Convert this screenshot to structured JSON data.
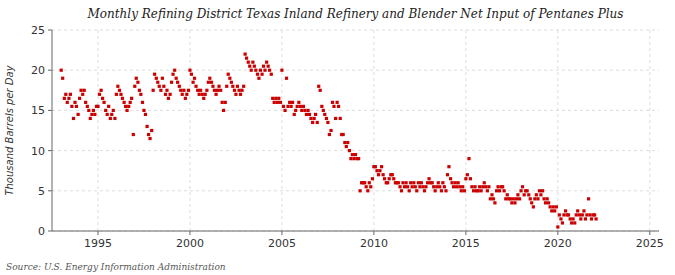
{
  "chart_data": {
    "type": "scatter",
    "title": "Monthly Refining District Texas Inland Refinery and Blender Net Input of Pentanes Plus",
    "y_label": "Thousand Barrels per Day",
    "annotations": [
      "Source: U.S. Energy Information Administration"
    ],
    "color": "#cc0000",
    "marker": "square",
    "grid": true,
    "xlim": [
      1992.5,
      2025.5
    ],
    "ylim": [
      0,
      25
    ],
    "xticks": [
      1995,
      2000,
      2005,
      2010,
      2015,
      2020,
      2025
    ],
    "yticks": [
      0,
      5,
      10,
      15,
      20,
      25
    ],
    "x": [
      1993.0,
      1993.08,
      1993.17,
      1993.25,
      1993.33,
      1993.42,
      1993.5,
      1993.58,
      1993.67,
      1993.75,
      1993.83,
      1993.92,
      1994.0,
      1994.08,
      1994.17,
      1994.25,
      1994.33,
      1994.42,
      1994.5,
      1994.58,
      1994.67,
      1994.75,
      1994.83,
      1994.92,
      1995.0,
      1995.08,
      1995.17,
      1995.25,
      1995.33,
      1995.42,
      1995.5,
      1995.58,
      1995.67,
      1995.75,
      1995.83,
      1995.92,
      1996.0,
      1996.08,
      1996.17,
      1996.25,
      1996.33,
      1996.42,
      1996.5,
      1996.58,
      1996.67,
      1996.75,
      1996.83,
      1996.92,
      1997.0,
      1997.08,
      1997.17,
      1997.25,
      1997.33,
      1997.42,
      1997.5,
      1997.58,
      1997.67,
      1997.75,
      1997.83,
      1997.92,
      1998.0,
      1998.08,
      1998.17,
      1998.25,
      1998.33,
      1998.42,
      1998.5,
      1998.58,
      1998.67,
      1998.75,
      1998.83,
      1998.92,
      1999.0,
      1999.08,
      1999.17,
      1999.25,
      1999.33,
      1999.42,
      1999.5,
      1999.58,
      1999.67,
      1999.75,
      1999.83,
      1999.92,
      2000.0,
      2000.08,
      2000.17,
      2000.25,
      2000.33,
      2000.42,
      2000.5,
      2000.58,
      2000.67,
      2000.75,
      2000.83,
      2000.92,
      2001.0,
      2001.08,
      2001.17,
      2001.25,
      2001.33,
      2001.42,
      2001.5,
      2001.58,
      2001.67,
      2001.75,
      2001.83,
      2001.92,
      2002.0,
      2002.08,
      2002.17,
      2002.25,
      2002.33,
      2002.42,
      2002.5,
      2002.58,
      2002.67,
      2002.75,
      2002.83,
      2002.92,
      2003.0,
      2003.08,
      2003.17,
      2003.25,
      2003.33,
      2003.42,
      2003.5,
      2003.58,
      2003.67,
      2003.75,
      2003.83,
      2003.92,
      2004.0,
      2004.08,
      2004.17,
      2004.25,
      2004.33,
      2004.42,
      2004.5,
      2004.58,
      2004.67,
      2004.75,
      2004.83,
      2004.92,
      2005.0,
      2005.08,
      2005.17,
      2005.25,
      2005.33,
      2005.42,
      2005.5,
      2005.58,
      2005.67,
      2005.75,
      2005.83,
      2005.92,
      2006.0,
      2006.08,
      2006.17,
      2006.25,
      2006.33,
      2006.42,
      2006.5,
      2006.58,
      2006.67,
      2006.75,
      2006.83,
      2006.92,
      2007.0,
      2007.08,
      2007.17,
      2007.25,
      2007.33,
      2007.42,
      2007.5,
      2007.58,
      2007.67,
      2007.75,
      2007.83,
      2007.92,
      2008.0,
      2008.08,
      2008.17,
      2008.25,
      2008.33,
      2008.42,
      2008.5,
      2008.58,
      2008.67,
      2008.75,
      2008.83,
      2008.92,
      2009.0,
      2009.08,
      2009.17,
      2009.25,
      2009.33,
      2009.42,
      2009.5,
      2009.58,
      2009.67,
      2009.75,
      2009.83,
      2009.92,
      2010.0,
      2010.08,
      2010.17,
      2010.25,
      2010.33,
      2010.42,
      2010.5,
      2010.58,
      2010.67,
      2010.75,
      2010.83,
      2010.92,
      2011.0,
      2011.08,
      2011.17,
      2011.25,
      2011.33,
      2011.42,
      2011.5,
      2011.58,
      2011.67,
      2011.75,
      2011.83,
      2011.92,
      2012.0,
      2012.08,
      2012.17,
      2012.25,
      2012.33,
      2012.42,
      2012.5,
      2012.58,
      2012.67,
      2012.75,
      2012.83,
      2012.92,
      2013.0,
      2013.08,
      2013.17,
      2013.25,
      2013.33,
      2013.42,
      2013.5,
      2013.58,
      2013.67,
      2013.75,
      2013.83,
      2013.92,
      2014.0,
      2014.08,
      2014.17,
      2014.25,
      2014.33,
      2014.42,
      2014.5,
      2014.58,
      2014.67,
      2014.75,
      2014.83,
      2014.92,
      2015.0,
      2015.08,
      2015.17,
      2015.25,
      2015.33,
      2015.42,
      2015.5,
      2015.58,
      2015.67,
      2015.75,
      2015.83,
      2015.92,
      2016.0,
      2016.08,
      2016.17,
      2016.25,
      2016.33,
      2016.42,
      2016.5,
      2016.58,
      2016.67,
      2016.75,
      2016.83,
      2016.92,
      2017.0,
      2017.08,
      2017.17,
      2017.25,
      2017.33,
      2017.42,
      2017.5,
      2017.58,
      2017.67,
      2017.75,
      2017.83,
      2017.92,
      2018.0,
      2018.08,
      2018.17,
      2018.25,
      2018.33,
      2018.42,
      2018.5,
      2018.58,
      2018.67,
      2018.75,
      2018.83,
      2018.92,
      2019.0,
      2019.08,
      2019.17,
      2019.25,
      2019.33,
      2019.42,
      2019.5,
      2019.58,
      2019.67,
      2019.75,
      2019.83,
      2019.92,
      2020.0,
      2020.08,
      2020.17,
      2020.25,
      2020.33,
      2020.42,
      2020.5,
      2020.58,
      2020.67,
      2020.75,
      2020.83,
      2020.92,
      2021.0,
      2021.08,
      2021.17,
      2021.25,
      2021.33,
      2021.42,
      2021.5,
      2021.58,
      2021.67,
      2021.75,
      2021.83,
      2021.92,
      2022.0,
      2022.08
    ],
    "values": [
      20.0,
      19.0,
      16.5,
      17.0,
      16.0,
      16.5,
      17.0,
      15.5,
      14.0,
      16.0,
      15.5,
      14.5,
      16.5,
      17.5,
      17.0,
      17.5,
      16.0,
      15.5,
      15.0,
      14.0,
      14.5,
      15.0,
      14.5,
      15.5,
      15.5,
      17.0,
      17.5,
      16.5,
      16.0,
      15.0,
      14.5,
      15.5,
      14.0,
      14.5,
      15.0,
      14.0,
      17.0,
      18.0,
      17.5,
      17.0,
      16.5,
      16.0,
      15.5,
      15.0,
      15.5,
      16.0,
      16.5,
      12.0,
      18.0,
      19.0,
      18.5,
      17.5,
      17.0,
      16.0,
      15.0,
      14.5,
      13.0,
      12.0,
      11.5,
      12.5,
      17.5,
      19.5,
      19.0,
      18.5,
      18.0,
      17.5,
      19.0,
      18.0,
      17.0,
      17.5,
      16.5,
      17.0,
      18.5,
      19.5,
      20.0,
      19.0,
      18.5,
      18.0,
      17.5,
      17.0,
      17.5,
      16.5,
      17.0,
      17.5,
      20.0,
      19.5,
      18.5,
      19.0,
      18.0,
      17.5,
      17.0,
      17.5,
      17.0,
      16.5,
      17.0,
      17.5,
      18.5,
      19.0,
      18.5,
      18.0,
      17.5,
      17.0,
      17.5,
      18.0,
      17.5,
      16.0,
      15.0,
      16.0,
      18.0,
      19.5,
      19.0,
      18.5,
      18.0,
      17.5,
      17.0,
      18.0,
      17.5,
      17.0,
      17.5,
      18.0,
      22.0,
      21.5,
      21.0,
      20.5,
      20.0,
      21.0,
      20.5,
      20.0,
      19.5,
      19.0,
      20.0,
      19.5,
      20.5,
      20.0,
      21.0,
      20.5,
      20.0,
      19.5,
      16.5,
      16.0,
      16.5,
      16.0,
      16.5,
      16.0,
      20.0,
      15.5,
      15.0,
      19.0,
      15.5,
      16.0,
      15.5,
      16.0,
      14.5,
      15.0,
      15.5,
      16.0,
      15.5,
      15.0,
      15.5,
      15.0,
      14.5,
      15.0,
      14.5,
      14.0,
      13.5,
      14.0,
      14.5,
      13.5,
      18.0,
      17.5,
      15.5,
      15.0,
      14.5,
      14.0,
      13.5,
      12.0,
      12.5,
      16.0,
      15.5,
      14.0,
      16.0,
      15.5,
      14.0,
      12.0,
      12.0,
      11.0,
      10.5,
      11.0,
      10.0,
      9.0,
      9.5,
      9.0,
      9.5,
      9.0,
      9.0,
      5.0,
      6.0,
      6.0,
      6.0,
      5.5,
      5.0,
      6.0,
      5.5,
      6.5,
      8.0,
      8.0,
      7.5,
      7.0,
      7.5,
      8.0,
      7.0,
      6.5,
      6.0,
      6.0,
      6.5,
      7.0,
      7.0,
      6.5,
      6.0,
      6.0,
      6.0,
      5.5,
      5.0,
      6.0,
      5.5,
      6.0,
      5.5,
      5.0,
      6.0,
      5.5,
      6.0,
      5.5,
      5.0,
      6.0,
      5.5,
      6.0,
      5.5,
      5.0,
      5.5,
      6.0,
      6.5,
      6.0,
      6.0,
      5.5,
      5.0,
      5.5,
      6.0,
      5.5,
      5.0,
      6.0,
      5.5,
      5.0,
      7.0,
      8.0,
      6.5,
      6.0,
      5.5,
      6.0,
      5.5,
      6.0,
      5.5,
      5.0,
      5.5,
      5.0,
      6.5,
      7.0,
      9.0,
      6.5,
      5.5,
      5.0,
      5.5,
      5.0,
      5.0,
      5.5,
      5.0,
      5.5,
      6.0,
      5.5,
      5.0,
      5.5,
      4.0,
      4.5,
      4.0,
      3.5,
      5.0,
      5.5,
      5.0,
      5.5,
      5.5,
      5.0,
      4.0,
      4.5,
      4.0,
      4.0,
      3.5,
      4.0,
      3.5,
      4.0,
      4.5,
      4.0,
      5.0,
      5.5,
      4.5,
      5.0,
      5.0,
      4.5,
      4.0,
      3.5,
      3.0,
      4.0,
      4.5,
      4.0,
      5.0,
      4.5,
      5.0,
      4.0,
      3.5,
      4.0,
      3.5,
      3.0,
      2.5,
      3.0,
      2.5,
      3.0,
      0.5,
      2.0,
      1.5,
      1.0,
      2.0,
      2.5,
      2.0,
      2.0,
      1.5,
      1.0,
      1.5,
      1.0,
      2.0,
      2.5,
      2.0,
      1.5,
      2.0,
      2.5,
      1.5,
      2.0,
      4.0,
      2.0,
      1.5,
      2.0,
      2.0,
      1.5
    ]
  }
}
